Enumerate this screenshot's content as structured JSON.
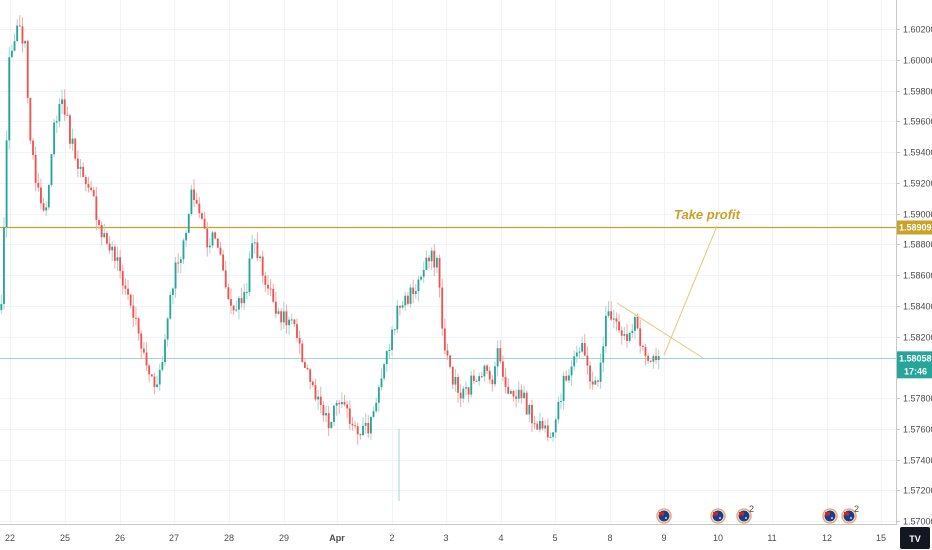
{
  "chart_data": {
    "type": "candlestick",
    "y_axis": {
      "range": [
        1.5695,
        1.6035
      ],
      "ticks": [
        "1.60200",
        "1.60000",
        "1.59800",
        "1.59600",
        "1.59400",
        "1.59200",
        "1.59000",
        "1.58800",
        "1.58600",
        "1.58400",
        "1.58200",
        "1.57800",
        "1.57600",
        "1.57400",
        "1.57200",
        "1.57000"
      ]
    },
    "x_axis": {
      "labels": [
        {
          "text": "22",
          "bold": false
        },
        {
          "text": "25",
          "bold": false
        },
        {
          "text": "26",
          "bold": false
        },
        {
          "text": "27",
          "bold": false
        },
        {
          "text": "28",
          "bold": false
        },
        {
          "text": "29",
          "bold": false
        },
        {
          "text": "Apr",
          "bold": true
        },
        {
          "text": "2",
          "bold": false
        },
        {
          "text": "3",
          "bold": false
        },
        {
          "text": "4",
          "bold": false
        },
        {
          "text": "5",
          "bold": false
        },
        {
          "text": "8",
          "bold": false
        },
        {
          "text": "9",
          "bold": false
        },
        {
          "text": "10",
          "bold": false
        },
        {
          "text": "11",
          "bold": false
        },
        {
          "text": "12",
          "bold": false
        },
        {
          "text": "15",
          "bold": false
        }
      ]
    },
    "anchor_prices": [
      1.584,
      1.5995,
      1.6018,
      1.6015,
      1.5935,
      1.5915,
      1.59,
      1.5962,
      1.5975,
      1.595,
      1.5935,
      1.5915,
      1.591,
      1.589,
      1.588,
      1.587,
      1.5855,
      1.584,
      1.582,
      1.58,
      1.579,
      1.58,
      1.5845,
      1.587,
      1.588,
      1.5915,
      1.59,
      1.588,
      1.589,
      1.586,
      1.584,
      1.584,
      1.585,
      1.5885,
      1.5865,
      1.585,
      1.584,
      1.583,
      1.583,
      1.581,
      1.58,
      1.578,
      1.577,
      1.576,
      1.578,
      1.577,
      1.5765,
      1.576,
      1.576,
      1.578,
      1.5795,
      1.582,
      1.584,
      1.5845,
      1.585,
      1.586,
      1.587,
      1.587,
      1.581,
      1.5795,
      1.578,
      1.5785,
      1.5795,
      1.58,
      1.579,
      1.581,
      1.579,
      1.578,
      1.5785,
      1.577,
      1.5765,
      1.576,
      1.576,
      1.578,
      1.5795,
      1.581,
      1.581,
      1.5795,
      1.5785,
      1.583,
      1.5838,
      1.5825,
      1.5815,
      1.583,
      1.581,
      1.58,
      1.5805
    ],
    "horizontal_levels": [
      {
        "name": "take-profit",
        "price": 1.58909,
        "label": "1.58909",
        "color": "#c9a227"
      },
      {
        "name": "last-price",
        "price": 1.58058,
        "label": "1.58058",
        "color": "#26a69a",
        "countdown": "17:46"
      }
    ],
    "annotations": [
      {
        "text": "Take profit",
        "color": "#c9a227"
      }
    ],
    "colors": {
      "up": "#26a69a",
      "down": "#ef5350",
      "up_wick": "#a5d6cf",
      "down_wick": "#f4a9a7"
    }
  },
  "ui": {
    "event_icons": [
      {
        "name": "event-au-1",
        "count": ""
      },
      {
        "name": "event-au-2",
        "count": ""
      },
      {
        "name": "event-au-3",
        "count": "2"
      },
      {
        "name": "event-au-4",
        "count": ""
      },
      {
        "name": "event-au-5",
        "count": "2"
      }
    ],
    "logo": "TV"
  }
}
